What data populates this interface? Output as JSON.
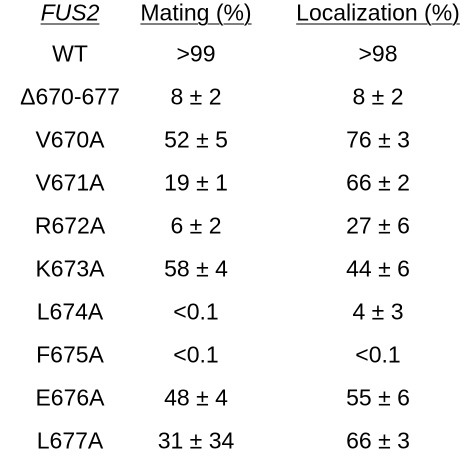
{
  "table": {
    "header": [
      "FUS2",
      "Mating (%)",
      "Localization (%)"
    ],
    "rows": [
      [
        "WT",
        ">99",
        ">98"
      ],
      [
        "Δ670-677",
        "8 ± 2",
        "8 ± 2"
      ],
      [
        "V670A",
        "52 ± 5",
        "76 ± 3"
      ],
      [
        "V671A",
        "19 ± 1",
        "66 ± 2"
      ],
      [
        "R672A",
        "6 ± 2",
        "27 ± 6"
      ],
      [
        "K673A",
        "58 ± 4",
        "44 ± 6"
      ],
      [
        "L674A",
        "<0.1",
        "4 ± 3"
      ],
      [
        "F675A",
        "<0.1",
        "<0.1"
      ],
      [
        "E676A",
        "48 ± 4",
        "55 ± 6"
      ],
      [
        "L677A",
        "31 ± 34",
        "66 ± 3"
      ]
    ]
  }
}
